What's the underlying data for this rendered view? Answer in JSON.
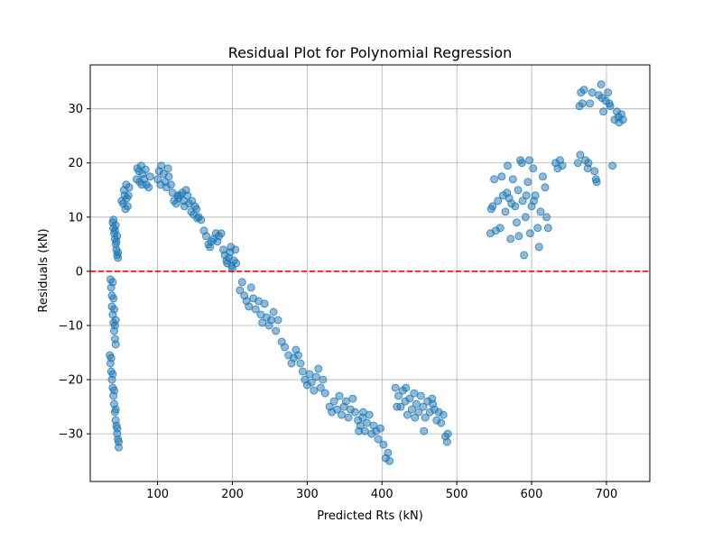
{
  "chart_data": {
    "type": "scatter",
    "title": "Residual Plot for Polynomial Regression",
    "xlabel": "Predicted Rts (kN)",
    "ylabel": "Residuals (kN)",
    "xlim": [
      10,
      758
    ],
    "ylim": [
      -38.8,
      38.1
    ],
    "xticks": [
      100,
      200,
      300,
      400,
      500,
      600,
      700
    ],
    "yticks": [
      -30,
      -20,
      -10,
      0,
      10,
      20,
      30
    ],
    "ytick_labels": [
      "−30",
      "−20",
      "−10",
      "0",
      "10",
      "20",
      "30"
    ],
    "grid": true,
    "point_color": "#1f77b4",
    "point_alpha": 0.5,
    "reference_line": {
      "y": 0,
      "color": "#ff0000",
      "style": "dashed"
    },
    "points": [
      [
        37,
        -1.5
      ],
      [
        38,
        -3
      ],
      [
        39,
        -4.5
      ],
      [
        39,
        -6.5
      ],
      [
        40,
        -8
      ],
      [
        41,
        -9.5
      ],
      [
        42,
        -11
      ],
      [
        43,
        -12.5
      ],
      [
        44,
        -13.5
      ],
      [
        40,
        -2
      ],
      [
        41,
        -5
      ],
      [
        42,
        -7
      ],
      [
        43,
        -10
      ],
      [
        44,
        -9
      ],
      [
        36,
        -15.5
      ],
      [
        37,
        -17
      ],
      [
        38,
        -18.5
      ],
      [
        39,
        -20
      ],
      [
        40,
        -21.5
      ],
      [
        41,
        -23
      ],
      [
        42,
        -24.5
      ],
      [
        43,
        -26
      ],
      [
        44,
        -27.5
      ],
      [
        45,
        -28.5
      ],
      [
        46,
        -30
      ],
      [
        47,
        -31
      ],
      [
        48,
        -32.5
      ],
      [
        38,
        -16
      ],
      [
        40,
        -19
      ],
      [
        42,
        -22
      ],
      [
        44,
        -25.5
      ],
      [
        46,
        -29
      ],
      [
        48,
        -31.5
      ],
      [
        40,
        9
      ],
      [
        41,
        8
      ],
      [
        42,
        7
      ],
      [
        43,
        6
      ],
      [
        44,
        5
      ],
      [
        45,
        4
      ],
      [
        46,
        3
      ],
      [
        47,
        2.5
      ],
      [
        41,
        9.5
      ],
      [
        43,
        7.5
      ],
      [
        45,
        5.5
      ],
      [
        47,
        3.5
      ],
      [
        44,
        8.5
      ],
      [
        46,
        6.5
      ],
      [
        52,
        13
      ],
      [
        55,
        15
      ],
      [
        58,
        16
      ],
      [
        56,
        14
      ],
      [
        60,
        12
      ],
      [
        57,
        11.5
      ],
      [
        62,
        15.5
      ],
      [
        54,
        12.5
      ],
      [
        59,
        13.5
      ],
      [
        61,
        14
      ],
      [
        72,
        17
      ],
      [
        75,
        18.5
      ],
      [
        78,
        19.5
      ],
      [
        80,
        18
      ],
      [
        82,
        17
      ],
      [
        85,
        16
      ],
      [
        88,
        15.5
      ],
      [
        90,
        17.5
      ],
      [
        76,
        16.5
      ],
      [
        84,
        18.8
      ],
      [
        73,
        19
      ],
      [
        79,
        16
      ],
      [
        100,
        17
      ],
      [
        102,
        18.5
      ],
      [
        105,
        19.5
      ],
      [
        108,
        18
      ],
      [
        110,
        16.5
      ],
      [
        112,
        15.5
      ],
      [
        115,
        17.5
      ],
      [
        118,
        16
      ],
      [
        120,
        14.5
      ],
      [
        104,
        16
      ],
      [
        114,
        19
      ],
      [
        122,
        13
      ],
      [
        125,
        12.5
      ],
      [
        128,
        13.5
      ],
      [
        130,
        14
      ],
      [
        133,
        14.5
      ],
      [
        135,
        13
      ],
      [
        138,
        15
      ],
      [
        140,
        14
      ],
      [
        127,
        14
      ],
      [
        136,
        12
      ],
      [
        142,
        12.5
      ],
      [
        145,
        11
      ],
      [
        148,
        10.5
      ],
      [
        150,
        12
      ],
      [
        152,
        11.5
      ],
      [
        155,
        10
      ],
      [
        158,
        9.5
      ],
      [
        146,
        13
      ],
      [
        153,
        9.8
      ],
      [
        162,
        7.5
      ],
      [
        165,
        6.5
      ],
      [
        168,
        5
      ],
      [
        170,
        4.5
      ],
      [
        175,
        6
      ],
      [
        178,
        7
      ],
      [
        180,
        5.5
      ],
      [
        182,
        6.5
      ],
      [
        172,
        5.5
      ],
      [
        185,
        7
      ],
      [
        188,
        4
      ],
      [
        190,
        3
      ],
      [
        192,
        2
      ],
      [
        193,
        1.5
      ],
      [
        195,
        2.5
      ],
      [
        197,
        3.5
      ],
      [
        199,
        1
      ],
      [
        200,
        0.5
      ],
      [
        202,
        2
      ],
      [
        204,
        4
      ],
      [
        205,
        1.5
      ],
      [
        198,
        4.5
      ],
      [
        210,
        -3.5
      ],
      [
        213,
        -2
      ],
      [
        216,
        -4.5
      ],
      [
        219,
        -5.5
      ],
      [
        222,
        -6.5
      ],
      [
        225,
        -3
      ],
      [
        228,
        -5
      ],
      [
        231,
        -7
      ],
      [
        235,
        -5.5
      ],
      [
        238,
        -8
      ],
      [
        240,
        -9.5
      ],
      [
        243,
        -6
      ],
      [
        246,
        -8.5
      ],
      [
        249,
        -10
      ],
      [
        252,
        -9
      ],
      [
        255,
        -7.5
      ],
      [
        258,
        -11
      ],
      [
        261,
        -9
      ],
      [
        266,
        -13
      ],
      [
        270,
        -14
      ],
      [
        275,
        -15.5
      ],
      [
        279,
        -17
      ],
      [
        282,
        -16
      ],
      [
        285,
        -14.5
      ],
      [
        288,
        -15.5
      ],
      [
        291,
        -17
      ],
      [
        294,
        -18.5
      ],
      [
        297,
        -20
      ],
      [
        300,
        -21
      ],
      [
        303,
        -19
      ],
      [
        306,
        -20.5
      ],
      [
        309,
        -22
      ],
      [
        312,
        -19.5
      ],
      [
        315,
        -18
      ],
      [
        318,
        -21.5
      ],
      [
        321,
        -20
      ],
      [
        324,
        -22.5
      ],
      [
        330,
        -25
      ],
      [
        333,
        -26
      ],
      [
        336,
        -24
      ],
      [
        340,
        -25.5
      ],
      [
        343,
        -23
      ],
      [
        346,
        -26.5
      ],
      [
        349,
        -25
      ],
      [
        352,
        -24
      ],
      [
        355,
        -27
      ],
      [
        358,
        -25.5
      ],
      [
        361,
        -23.5
      ],
      [
        364,
        -26
      ],
      [
        368,
        -27.5
      ],
      [
        371,
        -28.5
      ],
      [
        374,
        -27
      ],
      [
        377,
        -29.5
      ],
      [
        380,
        -28
      ],
      [
        383,
        -26.5
      ],
      [
        386,
        -30
      ],
      [
        389,
        -28.5
      ],
      [
        392,
        -29.5
      ],
      [
        395,
        -31
      ],
      [
        398,
        -29
      ],
      [
        369,
        -29.5
      ],
      [
        375,
        -26
      ],
      [
        402,
        -32
      ],
      [
        405,
        -34.5
      ],
      [
        408,
        -33.5
      ],
      [
        410,
        -35
      ],
      [
        418,
        -21.5
      ],
      [
        422,
        -23
      ],
      [
        425,
        -25
      ],
      [
        428,
        -22
      ],
      [
        431,
        -24
      ],
      [
        434,
        -26.5
      ],
      [
        437,
        -23.5
      ],
      [
        440,
        -25.5
      ],
      [
        443,
        -22.5
      ],
      [
        446,
        -24.5
      ],
      [
        449,
        -26
      ],
      [
        452,
        -23
      ],
      [
        455,
        -25
      ],
      [
        458,
        -27
      ],
      [
        461,
        -24
      ],
      [
        464,
        -26
      ],
      [
        467,
        -23.5
      ],
      [
        470,
        -25.5
      ],
      [
        473,
        -27.5
      ],
      [
        476,
        -26
      ],
      [
        479,
        -28
      ],
      [
        482,
        -26.5
      ],
      [
        485,
        -30.5
      ],
      [
        487,
        -31.5
      ],
      [
        488,
        -30
      ],
      [
        420,
        -25
      ],
      [
        432,
        -21.5
      ],
      [
        444,
        -27
      ],
      [
        456,
        -29.5
      ],
      [
        468,
        -24.5
      ],
      [
        545,
        7
      ],
      [
        548,
        12
      ],
      [
        550,
        17
      ],
      [
        555,
        13
      ],
      [
        558,
        8
      ],
      [
        562,
        14
      ],
      [
        565,
        11
      ],
      [
        568,
        19.5
      ],
      [
        570,
        13.5
      ],
      [
        572,
        6
      ],
      [
        575,
        17
      ],
      [
        578,
        12
      ],
      [
        580,
        9
      ],
      [
        582,
        15
      ],
      [
        585,
        20.5
      ],
      [
        588,
        13
      ],
      [
        590,
        3
      ],
      [
        592,
        10
      ],
      [
        595,
        16.5
      ],
      [
        598,
        7
      ],
      [
        600,
        12
      ],
      [
        602,
        19
      ],
      [
        605,
        14
      ],
      [
        608,
        8
      ],
      [
        610,
        4.5
      ],
      [
        612,
        11
      ],
      [
        615,
        17.5
      ],
      [
        618,
        15.5
      ],
      [
        620,
        10
      ],
      [
        622,
        8
      ],
      [
        546,
        11.5
      ],
      [
        560,
        17.5
      ],
      [
        573,
        12.5
      ],
      [
        583,
        6.5
      ],
      [
        593,
        14
      ],
      [
        603,
        13
      ],
      [
        552,
        7.5
      ],
      [
        567,
        14.5
      ],
      [
        587,
        20
      ],
      [
        597,
        20.5
      ],
      [
        632,
        20
      ],
      [
        635,
        19
      ],
      [
        638,
        20.5
      ],
      [
        641,
        19.5
      ],
      [
        662,
        20
      ],
      [
        665,
        21.5
      ],
      [
        668,
        31
      ],
      [
        670,
        33.5
      ],
      [
        672,
        20.5
      ],
      [
        675,
        19
      ],
      [
        678,
        31
      ],
      [
        681,
        33
      ],
      [
        684,
        18.5
      ],
      [
        687,
        16.5
      ],
      [
        690,
        32.5
      ],
      [
        693,
        34.5
      ],
      [
        696,
        29.5
      ],
      [
        699,
        31.5
      ],
      [
        702,
        33
      ],
      [
        705,
        30.5
      ],
      [
        708,
        19.5
      ],
      [
        711,
        28
      ],
      [
        714,
        29.5
      ],
      [
        717,
        27.5
      ],
      [
        720,
        29
      ],
      [
        722,
        28
      ],
      [
        664,
        30.5
      ],
      [
        666,
        33
      ],
      [
        676,
        20
      ],
      [
        686,
        17
      ],
      [
        694,
        32
      ],
      [
        704,
        31
      ],
      [
        716,
        28.5
      ]
    ]
  }
}
